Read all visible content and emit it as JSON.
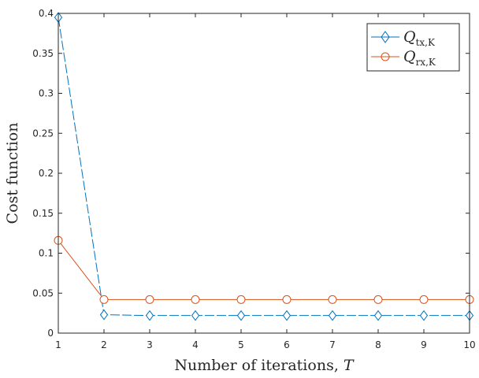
{
  "chart_data": {
    "type": "line",
    "xlabel_text": "Number of iterations, ",
    "xlabel_var": "T",
    "ylabel": "Cost function",
    "xlim": [
      1,
      10
    ],
    "ylim": [
      0,
      0.4
    ],
    "xticks": [
      "1",
      "2",
      "3",
      "4",
      "5",
      "6",
      "7",
      "8",
      "9",
      "10"
    ],
    "yticks": [
      "0",
      "0.05",
      "0.1",
      "0.15",
      "0.2",
      "0.25",
      "0.3",
      "0.35",
      "0.4"
    ],
    "grid": false,
    "legend_position": "top-right",
    "series": [
      {
        "name": "Q",
        "name_sub": "tx,K",
        "color": "#0072BD",
        "marker": "diamond",
        "x": [
          1,
          2,
          3,
          4,
          5,
          6,
          7,
          8,
          9,
          10
        ],
        "values": [
          0.395,
          0.023,
          0.022,
          0.022,
          0.022,
          0.022,
          0.022,
          0.022,
          0.022,
          0.022
        ]
      },
      {
        "name": "Q",
        "name_sub": "rx,K",
        "color": "#D95319",
        "marker": "circle",
        "x": [
          1,
          2,
          3,
          4,
          5,
          6,
          7,
          8,
          9,
          10
        ],
        "values": [
          0.116,
          0.042,
          0.042,
          0.042,
          0.042,
          0.042,
          0.042,
          0.042,
          0.042,
          0.042
        ]
      }
    ]
  }
}
